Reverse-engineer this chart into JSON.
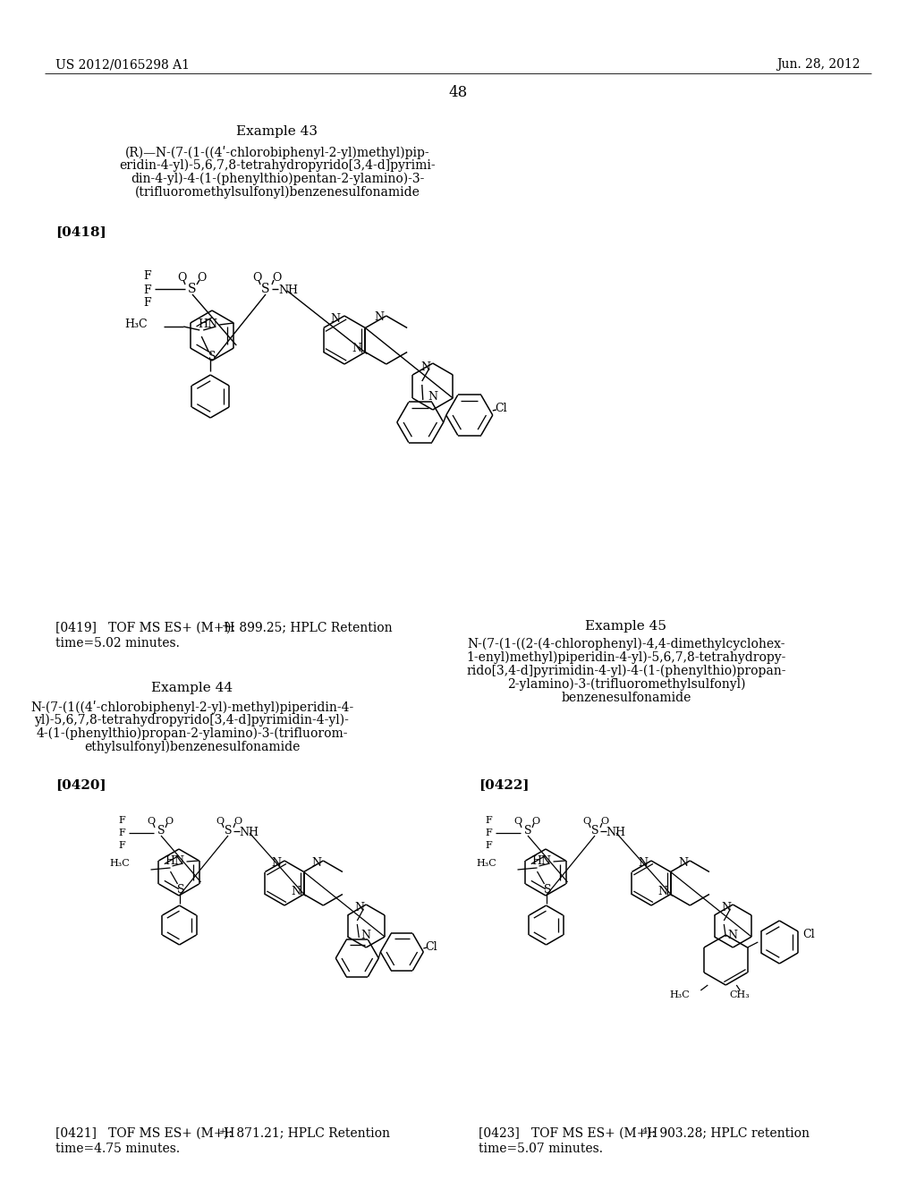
{
  "bg": "#ffffff",
  "hdr_l": "US 2012/0165298 A1",
  "hdr_r": "Jun. 28, 2012",
  "pgnum": "48",
  "ex43_title": "Example 43",
  "ex43_l1": "(R)—N-(7-(1-((4ʹ-chlorobiphenyl-2-yl)methyl)pip-",
  "ex43_l2": "eridin-4-yl)-5,6,7,8-tetrahydropyrido[3,4-d]pyrimi-",
  "ex43_l3": "din-4-yl)-4-(1-(phenylthio)pentan-2-ylamino)-3-",
  "ex43_l4": "(trifluoromethylsulfonyl)benzenesulfonamide",
  "ref418": "[0418]",
  "ref419_a": "[0419]   TOF MS ES+ (M+H",
  "ref419_b": "): 899.25; HPLC Retention",
  "ref419_c": "time=5.02 minutes.",
  "ex45_title": "Example 45",
  "ex45_l1": "N-(7-(1-((2-(4-chlorophenyl)-4,4-dimethylcyclohex-",
  "ex45_l2": "1-enyl)methyl)piperidin-4-yl)-5,6,7,8-tetrahydropy-",
  "ex45_l3": "rido[3,4-d]pyrimidin-4-yl)-4-(1-(phenylthio)propan-",
  "ex45_l4": "2-ylamino)-3-(trifluoromethylsulfonyl)",
  "ex45_l5": "benzenesulfonamide",
  "ex44_title": "Example 44",
  "ex44_l1": "N-(7-(1((4ʹ-chlorobiphenyl-2-yl)-methyl)piperidin-4-",
  "ex44_l2": "yl)-5,6,7,8-tetrahydropyrido[3,4-d]pyrimidin-4-yl)-",
  "ex44_l3": "4-(1-(phenylthio)propan-2-ylamino)-3-(trifluorom-",
  "ex44_l4": "ethylsulfonyl)benzenesulfonamide",
  "ref420": "[0420]",
  "ref421_a": "[0421]   TOF MS ES+ (M+H",
  "ref421_b": "): 871.21; HPLC Retention",
  "ref421_c": "time=4.75 minutes.",
  "ref422": "[0422]",
  "ref423_a": "[0423]   TOF MS ES+ (M+H",
  "ref423_b": "): 903.28; HPLC retention",
  "ref423_c": "time=5.07 minutes."
}
